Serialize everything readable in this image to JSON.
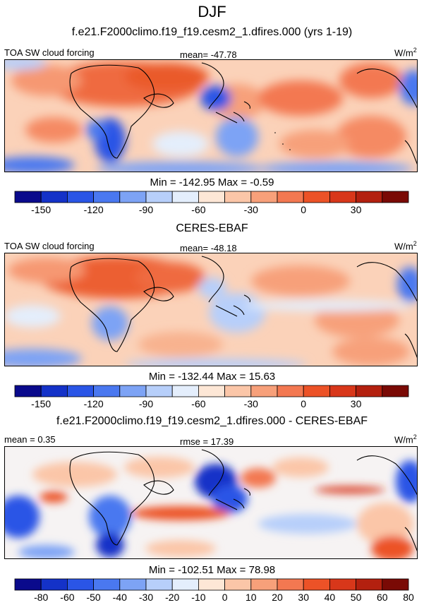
{
  "title": "DJF",
  "panels": [
    {
      "heading": "f.e21.F2000climo.f19_f19.cesm2_1.dfires.000 (yrs 1-19)",
      "left_label": "TOA SW cloud forcing",
      "center_label": "mean= -47.78",
      "unit": "W/m",
      "unit_sup": "2",
      "minmax": "Min = -142.95 Max =  -0.59"
    },
    {
      "heading": "CERES-EBAF",
      "left_label": "TOA SW cloud forcing",
      "center_label": "mean= -48.18",
      "unit": "W/m",
      "unit_sup": "2",
      "minmax": "Min = -132.44 Max =  15.63"
    },
    {
      "heading": "f.e21.F2000climo.f19_f19.cesm2_1.dfires.000 - CERES-EBAF",
      "left_label": "mean =   0.35",
      "center_label": "rmse =  17.39",
      "unit": "W/m",
      "unit_sup": "2",
      "minmax": "Min = -102.51 Max =  78.98"
    }
  ],
  "chart_data": [
    {
      "type": "heatmap",
      "title": "f.e21.F2000climo.f19_f19.cesm2_1.dfires.000 (yrs 1-19)",
      "variable": "TOA SW cloud forcing",
      "units": "W/m2",
      "mean": -47.78,
      "min": -142.95,
      "max": -0.59,
      "colorbar": {
        "colors": [
          "#0a0a8c",
          "#1432c8",
          "#2a55e6",
          "#4a78f0",
          "#7da3f5",
          "#b7cffa",
          "#e4eefc",
          "#fde7d6",
          "#fbc6a8",
          "#f7a07a",
          "#f37851",
          "#ec5227",
          "#d8371a",
          "#b3200f",
          "#7a0a05"
        ],
        "tick_labels": [
          "-150",
          "-120",
          "-90",
          "-60",
          "-30",
          "0",
          "30"
        ],
        "tick_values": [
          -150,
          -120,
          -90,
          -60,
          -30,
          0,
          30
        ]
      }
    },
    {
      "type": "heatmap",
      "title": "CERES-EBAF",
      "variable": "TOA SW cloud forcing",
      "units": "W/m2",
      "mean": -48.18,
      "min": -132.44,
      "max": 15.63,
      "colorbar": {
        "colors": [
          "#0a0a8c",
          "#1432c8",
          "#2a55e6",
          "#4a78f0",
          "#7da3f5",
          "#b7cffa",
          "#e4eefc",
          "#fde7d6",
          "#fbc6a8",
          "#f7a07a",
          "#f37851",
          "#ec5227",
          "#d8371a",
          "#b3200f",
          "#7a0a05"
        ],
        "tick_labels": [
          "-150",
          "-120",
          "-90",
          "-60",
          "-30",
          "0",
          "30"
        ],
        "tick_values": [
          -150,
          -120,
          -90,
          -60,
          -30,
          0,
          30
        ]
      }
    },
    {
      "type": "heatmap",
      "title": "f.e21.F2000climo.f19_f19.cesm2_1.dfires.000 - CERES-EBAF",
      "mean": 0.35,
      "rmse": 17.39,
      "units": "W/m2",
      "min": -102.51,
      "max": 78.98,
      "colorbar": {
        "colors": [
          "#0a0a8c",
          "#1432c8",
          "#2a55e6",
          "#4a78f0",
          "#7da3f5",
          "#b7cffa",
          "#e4eefc",
          "#fde7d6",
          "#fbc6a8",
          "#f7a07a",
          "#f37851",
          "#ec5227",
          "#d8371a",
          "#b3200f",
          "#7a0a05"
        ],
        "tick_labels": [
          "-80",
          "-60",
          "-50",
          "-40",
          "-30",
          "-20",
          "-10",
          "0",
          "10",
          "20",
          "30",
          "40",
          "50",
          "60",
          "80"
        ],
        "tick_values": [
          -80,
          -60,
          -50,
          -40,
          -30,
          -20,
          -10,
          0,
          10,
          20,
          30,
          40,
          50,
          60,
          80
        ]
      }
    }
  ]
}
